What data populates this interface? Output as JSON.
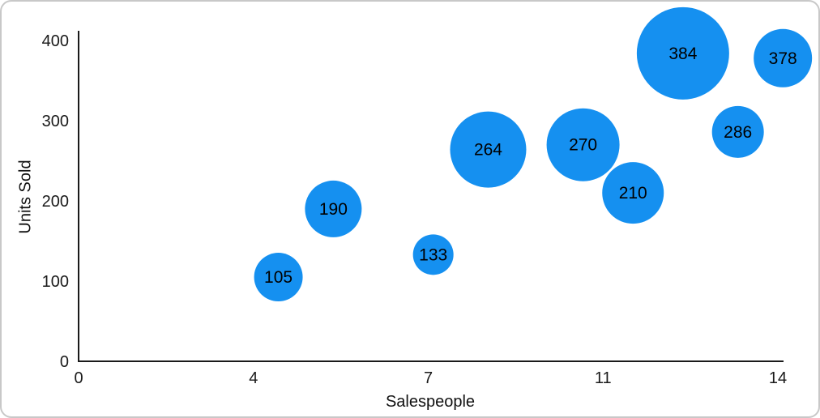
{
  "chart_data": {
    "type": "bubble",
    "title": "",
    "xlabel": "Salespeople",
    "ylabel": "Units Sold",
    "xlim": [
      0,
      14
    ],
    "ylim": [
      0,
      400
    ],
    "grid": false,
    "legend": "none",
    "bubble_color": "#1590F0",
    "label_color": "#000000",
    "axis_color": "#1a1a1a",
    "x_ticks": [
      {
        "pos": 0,
        "label": "0"
      },
      {
        "pos": 3.5,
        "label": "4"
      },
      {
        "pos": 7,
        "label": "7"
      },
      {
        "pos": 10.5,
        "label": "11"
      },
      {
        "pos": 14,
        "label": "14"
      }
    ],
    "y_ticks": [
      {
        "pos": 0,
        "label": "0"
      },
      {
        "pos": 100,
        "label": "100"
      },
      {
        "pos": 200,
        "label": "200"
      },
      {
        "pos": 300,
        "label": "300"
      },
      {
        "pos": 400,
        "label": "400"
      }
    ],
    "points": [
      {
        "x": 4.0,
        "y": 105,
        "value_label": "105",
        "radius_px": 30
      },
      {
        "x": 5.1,
        "y": 190,
        "value_label": "190",
        "radius_px": 35
      },
      {
        "x": 7.1,
        "y": 133,
        "value_label": "133",
        "radius_px": 25
      },
      {
        "x": 8.2,
        "y": 264,
        "value_label": "264",
        "radius_px": 47
      },
      {
        "x": 10.1,
        "y": 270,
        "value_label": "270",
        "radius_px": 45
      },
      {
        "x": 11.1,
        "y": 210,
        "value_label": "210",
        "radius_px": 38
      },
      {
        "x": 12.1,
        "y": 384,
        "value_label": "384",
        "radius_px": 57
      },
      {
        "x": 13.2,
        "y": 286,
        "value_label": "286",
        "radius_px": 32
      },
      {
        "x": 14.1,
        "y": 378,
        "value_label": "378",
        "radius_px": 36
      }
    ]
  }
}
